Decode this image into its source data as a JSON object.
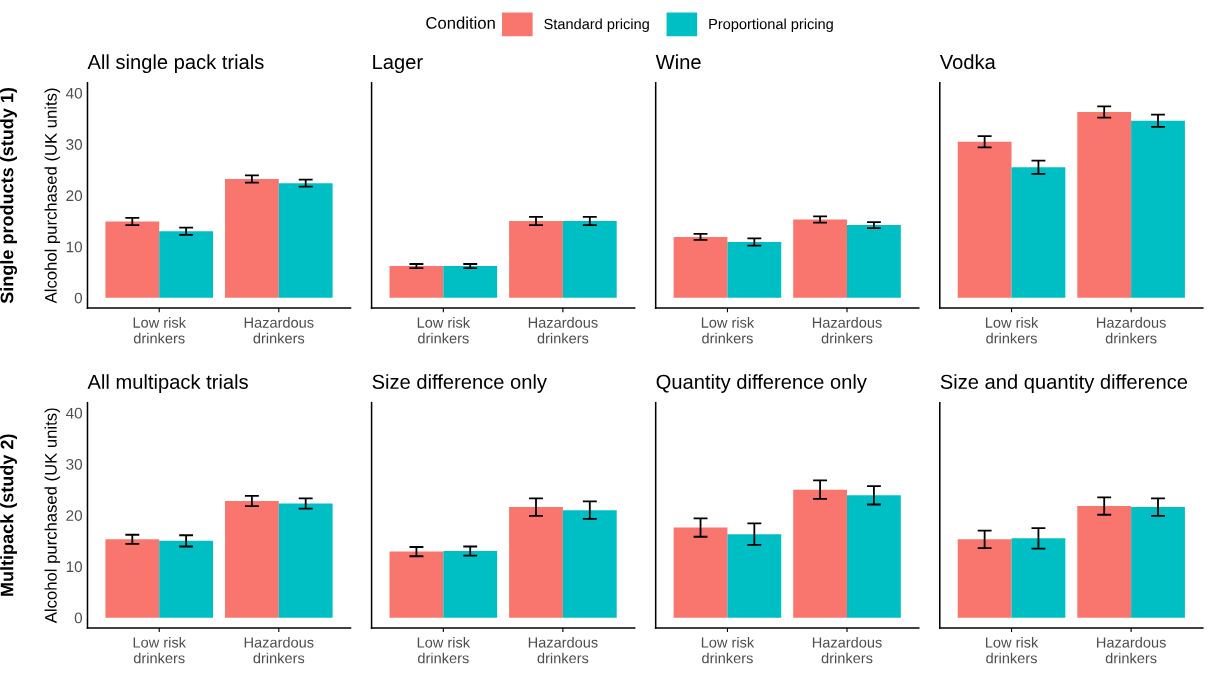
{
  "chart_data": [
    {
      "type": "bar",
      "title": "All single pack trials",
      "ylabel": "Alcohol purchased (UK units)",
      "annotations": [
        "Single products (study 1)"
      ],
      "legend": "top",
      "legend_title": "Condition",
      "categories": [
        "Low risk\ndrinkers",
        "Hazardous\ndrinkers"
      ],
      "ylim": [
        -2,
        42
      ],
      "yticks": [
        0,
        10,
        20,
        30,
        40
      ],
      "series": [
        {
          "name": "Standard pricing",
          "color": "#f8766d",
          "values": [
            14.9,
            23.2
          ],
          "errors": [
            0.7,
            0.7
          ]
        },
        {
          "name": "Proportional pricing",
          "color": "#00bfc4",
          "values": [
            13.0,
            22.4
          ],
          "errors": [
            0.7,
            0.7
          ]
        }
      ]
    },
    {
      "type": "bar",
      "title": "Lager",
      "tick_labels": "x",
      "categories": [
        "Low risk\ndrinkers",
        "Hazardous\ndrinkers"
      ],
      "ylim": [
        -2,
        42
      ],
      "series": [
        {
          "color": "#f8766d",
          "values": [
            6.2,
            15.0
          ],
          "errors": [
            0.4,
            0.8
          ]
        },
        {
          "color": "#00bfc4",
          "values": [
            6.2,
            15.0
          ],
          "errors": [
            0.4,
            0.8
          ]
        }
      ]
    },
    {
      "type": "bar",
      "title": "Wine",
      "tick_labels": "x",
      "categories": [
        "Low risk\ndrinkers",
        "Hazardous\ndrinkers"
      ],
      "ylim": [
        -2,
        42
      ],
      "series": [
        {
          "color": "#f8766d",
          "values": [
            11.9,
            15.3
          ],
          "errors": [
            0.6,
            0.6
          ]
        },
        {
          "color": "#00bfc4",
          "values": [
            10.9,
            14.2
          ],
          "errors": [
            0.7,
            0.6
          ]
        }
      ]
    },
    {
      "type": "bar",
      "title": "Vodka",
      "tick_labels": "x",
      "categories": [
        "Low risk\ndrinkers",
        "Hazardous\ndrinkers"
      ],
      "ylim": [
        -2,
        42
      ],
      "series": [
        {
          "color": "#f8766d",
          "values": [
            30.5,
            36.3
          ],
          "errors": [
            1.1,
            1.1
          ]
        },
        {
          "color": "#00bfc4",
          "values": [
            25.5,
            34.6
          ],
          "errors": [
            1.3,
            1.2
          ]
        }
      ]
    },
    {
      "type": "bar",
      "title": "All multipack trials",
      "ylabel": "Alcohol purchased (UK units)",
      "annotations": [
        "Multipack (study 2)"
      ],
      "categories": [
        "Low risk\ndrinkers",
        "Hazardous\ndrinkers"
      ],
      "ylim": [
        -2,
        42
      ],
      "yticks": [
        0,
        10,
        20,
        30,
        40
      ],
      "series": [
        {
          "color": "#f8766d",
          "values": [
            15.3,
            22.8
          ],
          "errors": [
            0.9,
            1.0
          ]
        },
        {
          "color": "#00bfc4",
          "values": [
            15.0,
            22.3
          ],
          "errors": [
            1.1,
            1.0
          ]
        }
      ]
    },
    {
      "type": "bar",
      "title": "Size difference only",
      "tick_labels": "x",
      "categories": [
        "Low risk\ndrinkers",
        "Hazardous\ndrinkers"
      ],
      "ylim": [
        -2,
        42
      ],
      "series": [
        {
          "color": "#f8766d",
          "values": [
            12.9,
            21.6
          ],
          "errors": [
            0.9,
            1.7
          ]
        },
        {
          "color": "#00bfc4",
          "values": [
            13.0,
            21.0
          ],
          "errors": [
            0.9,
            1.7
          ]
        }
      ]
    },
    {
      "type": "bar",
      "title": "Quantity difference only",
      "tick_labels": "x",
      "categories": [
        "Low risk\ndrinkers",
        "Hazardous\ndrinkers"
      ],
      "ylim": [
        -2,
        42
      ],
      "series": [
        {
          "color": "#f8766d",
          "values": [
            17.6,
            25.0
          ],
          "errors": [
            1.8,
            1.8
          ]
        },
        {
          "color": "#00bfc4",
          "values": [
            16.3,
            23.9
          ],
          "errors": [
            2.1,
            1.8
          ]
        }
      ]
    },
    {
      "type": "bar",
      "title": "Size and quantity difference",
      "tick_labels": "x",
      "categories": [
        "Low risk\ndrinkers",
        "Hazardous\ndrinkers"
      ],
      "ylim": [
        -2,
        42
      ],
      "series": [
        {
          "color": "#f8766d",
          "values": [
            15.3,
            21.8
          ],
          "errors": [
            1.7,
            1.7
          ]
        },
        {
          "color": "#00bfc4",
          "values": [
            15.5,
            21.6
          ],
          "errors": [
            2.0,
            1.7
          ]
        }
      ]
    }
  ]
}
